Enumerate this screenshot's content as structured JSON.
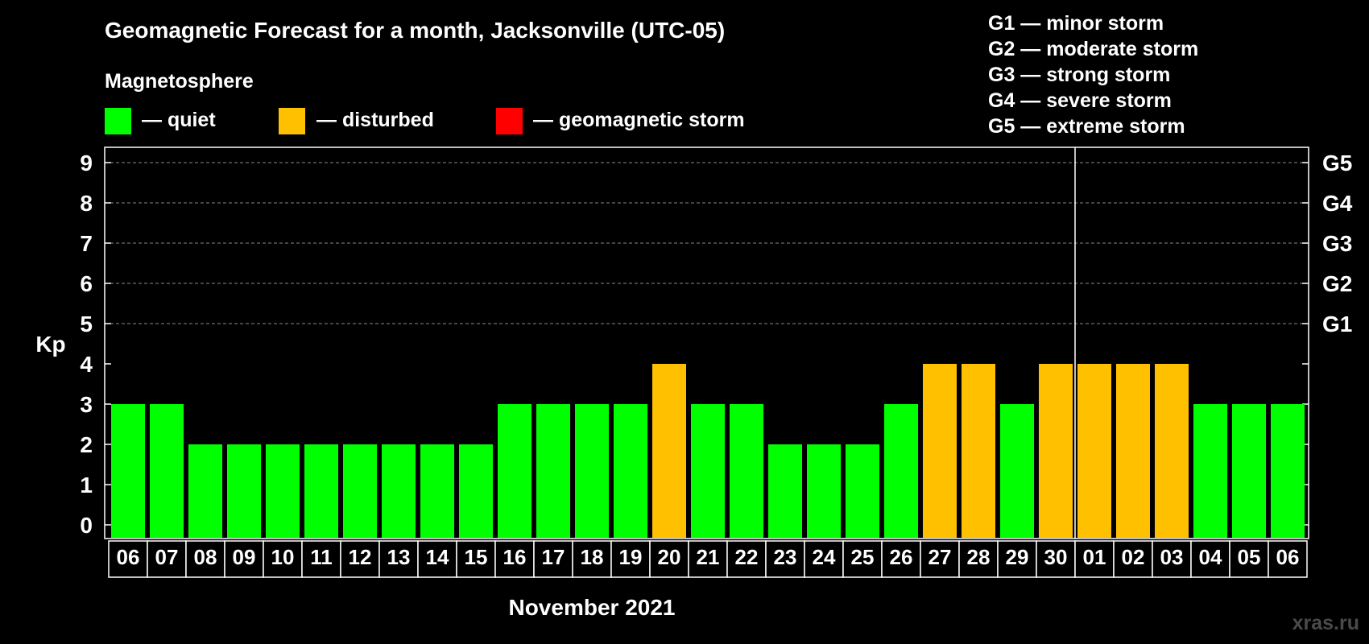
{
  "chart_data": {
    "type": "bar",
    "title": "Geomagnetic Forecast for a month, Jacksonville (UTC-05)",
    "legend_title": "Magnetosphere",
    "legend": [
      {
        "key": "quiet",
        "label": "— quiet",
        "color": "#00ff00"
      },
      {
        "key": "disturbed",
        "label": "— disturbed",
        "color": "#ffc000"
      },
      {
        "key": "storm",
        "label": "— geomagnetic storm",
        "color": "#ff0000"
      }
    ],
    "storm_scale": [
      "G1 — minor storm",
      "G2 — moderate storm",
      "G3 — strong storm",
      "G4 — severe storm",
      "G5 — extreme storm"
    ],
    "ylabel": "Kp",
    "xlabel": "November 2021",
    "ylim": [
      0,
      9
    ],
    "yticks": [
      "0",
      "1",
      "2",
      "3",
      "4",
      "5",
      "6",
      "7",
      "8",
      "9"
    ],
    "right_ticks": [
      {
        "kp": 5,
        "label": "G1"
      },
      {
        "kp": 6,
        "label": "G2"
      },
      {
        "kp": 7,
        "label": "G3"
      },
      {
        "kp": 8,
        "label": "G4"
      },
      {
        "kp": 9,
        "label": "G5"
      }
    ],
    "grid_levels": [
      5,
      6,
      7,
      8,
      9
    ],
    "month_divider_after": "30",
    "categories": [
      "06",
      "07",
      "08",
      "09",
      "10",
      "11",
      "12",
      "13",
      "14",
      "15",
      "16",
      "17",
      "18",
      "19",
      "20",
      "21",
      "22",
      "23",
      "24",
      "25",
      "26",
      "27",
      "28",
      "29",
      "30",
      "01",
      "02",
      "03",
      "04",
      "05",
      "06"
    ],
    "values": [
      3,
      3,
      2,
      2,
      2,
      2,
      2,
      2,
      2,
      2,
      3,
      3,
      3,
      3,
      4,
      3,
      3,
      2,
      2,
      2,
      3,
      4,
      4,
      3,
      4,
      4,
      4,
      4,
      3,
      3,
      3
    ],
    "status": [
      "quiet",
      "quiet",
      "quiet",
      "quiet",
      "quiet",
      "quiet",
      "quiet",
      "quiet",
      "quiet",
      "quiet",
      "quiet",
      "quiet",
      "quiet",
      "quiet",
      "disturbed",
      "quiet",
      "quiet",
      "quiet",
      "quiet",
      "quiet",
      "quiet",
      "disturbed",
      "disturbed",
      "quiet",
      "disturbed",
      "disturbed",
      "disturbed",
      "disturbed",
      "quiet",
      "quiet",
      "quiet"
    ]
  },
  "watermark": "xras.ru"
}
